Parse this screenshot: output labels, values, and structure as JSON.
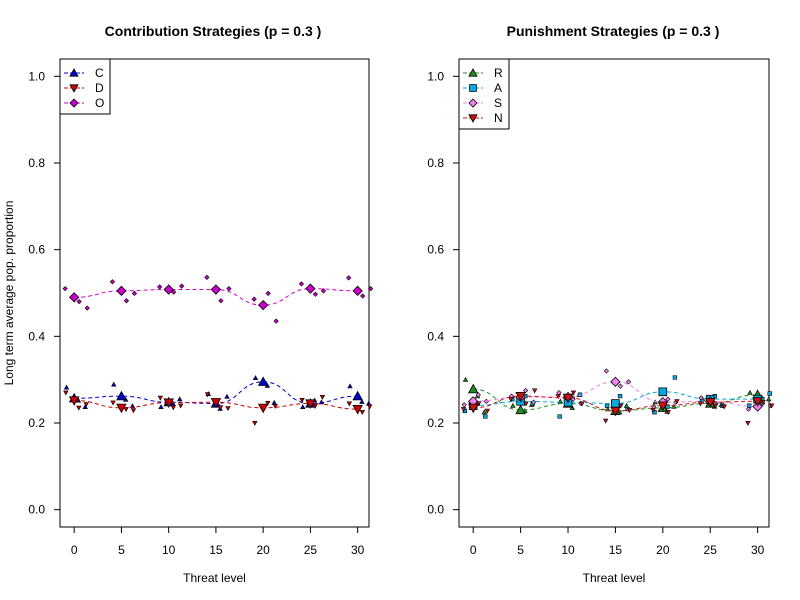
{
  "chart_data": [
    {
      "type": "line",
      "title": "Contribution Strategies (p = 0.3 )",
      "xlabel": "Threat level",
      "ylabel": "Long term average pop. proportion",
      "x": [
        0,
        5,
        10,
        15,
        20,
        25,
        30
      ],
      "xlim": [
        -1.5,
        31.2
      ],
      "ylim": [
        -0.04,
        1.04
      ],
      "xticks": [
        "0",
        "5",
        "10",
        "15",
        "20",
        "25",
        "30"
      ],
      "yticks": [
        "0.0",
        "0.2",
        "0.4",
        "0.6",
        "0.8",
        "1.0"
      ],
      "legend_position": "top-left",
      "series": [
        {
          "name": "C",
          "color": "#0000cd",
          "marker": "triangle-up",
          "values": [
            0.257,
            0.262,
            0.248,
            0.245,
            0.295,
            0.245,
            0.262
          ],
          "replicates": [
            [
              0.282,
              0.252,
              0.237
            ],
            [
              0.289,
              0.254,
              0.239
            ],
            [
              0.237,
              0.245,
              0.255
            ],
            [
              0.267,
              0.233,
              0.261
            ],
            [
              0.304,
              0.286,
              0.247
            ],
            [
              0.237,
              0.252,
              0.248
            ],
            [
              0.285,
              0.249,
              0.245
            ]
          ]
        },
        {
          "name": "D",
          "color": "#cc0000",
          "marker": "triangle-down",
          "values": [
            0.252,
            0.235,
            0.247,
            0.248,
            0.235,
            0.245,
            0.232
          ],
          "replicates": [
            [
              0.27,
              0.235,
              0.243
            ],
            [
              0.247,
              0.232,
              0.229
            ],
            [
              0.258,
              0.236,
              0.24
            ],
            [
              0.266,
              0.236,
              0.234
            ],
            [
              0.2,
              0.246,
              0.239
            ],
            [
              0.253,
              0.239,
              0.26
            ],
            [
              0.245,
              0.225,
              0.238
            ]
          ]
        },
        {
          "name": "O",
          "color": "#cc00cc",
          "marker": "diamond",
          "values": [
            0.49,
            0.505,
            0.508,
            0.508,
            0.472,
            0.51,
            0.505
          ],
          "replicates": [
            [
              0.51,
              0.48,
              0.465
            ],
            [
              0.526,
              0.482,
              0.499
            ],
            [
              0.514,
              0.502,
              0.516
            ],
            [
              0.536,
              0.482,
              0.51
            ],
            [
              0.486,
              0.499,
              0.435
            ],
            [
              0.521,
              0.497,
              0.505
            ],
            [
              0.535,
              0.493,
              0.51
            ]
          ]
        }
      ]
    },
    {
      "type": "line",
      "title": "Punishment Strategies (p = 0.3 )",
      "xlabel": "Threat level",
      "ylabel": "",
      "x": [
        0,
        5,
        10,
        15,
        20,
        25,
        30
      ],
      "xlim": [
        -1.5,
        31.2
      ],
      "ylim": [
        -0.04,
        1.04
      ],
      "xticks": [
        "0",
        "5",
        "10",
        "15",
        "20",
        "25",
        "30"
      ],
      "yticks": [
        "0.0",
        "0.2",
        "0.4",
        "0.6",
        "0.8",
        "1.0"
      ],
      "legend_position": "top-left",
      "series": [
        {
          "name": "R",
          "color": "#228b22",
          "marker": "triangle-up",
          "values": [
            0.278,
            0.23,
            0.245,
            0.228,
            0.235,
            0.245,
            0.265
          ],
          "replicates": [
            [
              0.3,
              0.262,
              0.225
            ],
            [
              0.24,
              0.228,
              0.242
            ],
            [
              0.25,
              0.235,
              0.265
            ],
            [
              0.232,
              0.225,
              0.24
            ],
            [
              0.248,
              0.226,
              0.238
            ],
            [
              0.255,
              0.238,
              0.242
            ],
            [
              0.27,
              0.258,
              0.255
            ]
          ]
        },
        {
          "name": "A",
          "color": "#00a9e0",
          "marker": "square",
          "values": [
            0.24,
            0.25,
            0.248,
            0.245,
            0.272,
            0.255,
            0.255
          ],
          "replicates": [
            [
              0.228,
              0.245,
              0.215
            ],
            [
              0.255,
              0.262,
              0.245
            ],
            [
              0.215,
              0.258,
              0.265
            ],
            [
              0.24,
              0.262,
              0.232
            ],
            [
              0.225,
              0.238,
              0.305
            ],
            [
              0.25,
              0.262,
              0.24
            ],
            [
              0.24,
              0.255,
              0.268
            ]
          ]
        },
        {
          "name": "S",
          "color": "#ee82ee",
          "marker": "diamond",
          "values": [
            0.25,
            0.26,
            0.26,
            0.295,
            0.248,
            0.25,
            0.238
          ],
          "replicates": [
            [
              0.242,
              0.265,
              0.25
            ],
            [
              0.262,
              0.275,
              0.248
            ],
            [
              0.27,
              0.255,
              0.245
            ],
            [
              0.32,
              0.285,
              0.295
            ],
            [
              0.238,
              0.255,
              0.248
            ],
            [
              0.258,
              0.245,
              0.24
            ],
            [
              0.232,
              0.245,
              0.24
            ]
          ]
        },
        {
          "name": "N",
          "color": "#cc1111",
          "marker": "triangle-down",
          "values": [
            0.235,
            0.262,
            0.258,
            0.228,
            0.24,
            0.248,
            0.25
          ],
          "replicates": [
            [
              0.232,
              0.245,
              0.228
            ],
            [
              0.255,
              0.245,
              0.275
            ],
            [
              0.262,
              0.27,
              0.245
            ],
            [
              0.205,
              0.24,
              0.23
            ],
            [
              0.23,
              0.225,
              0.25
            ],
            [
              0.245,
              0.24,
              0.238
            ],
            [
              0.2,
              0.248,
              0.24
            ]
          ]
        }
      ]
    }
  ]
}
